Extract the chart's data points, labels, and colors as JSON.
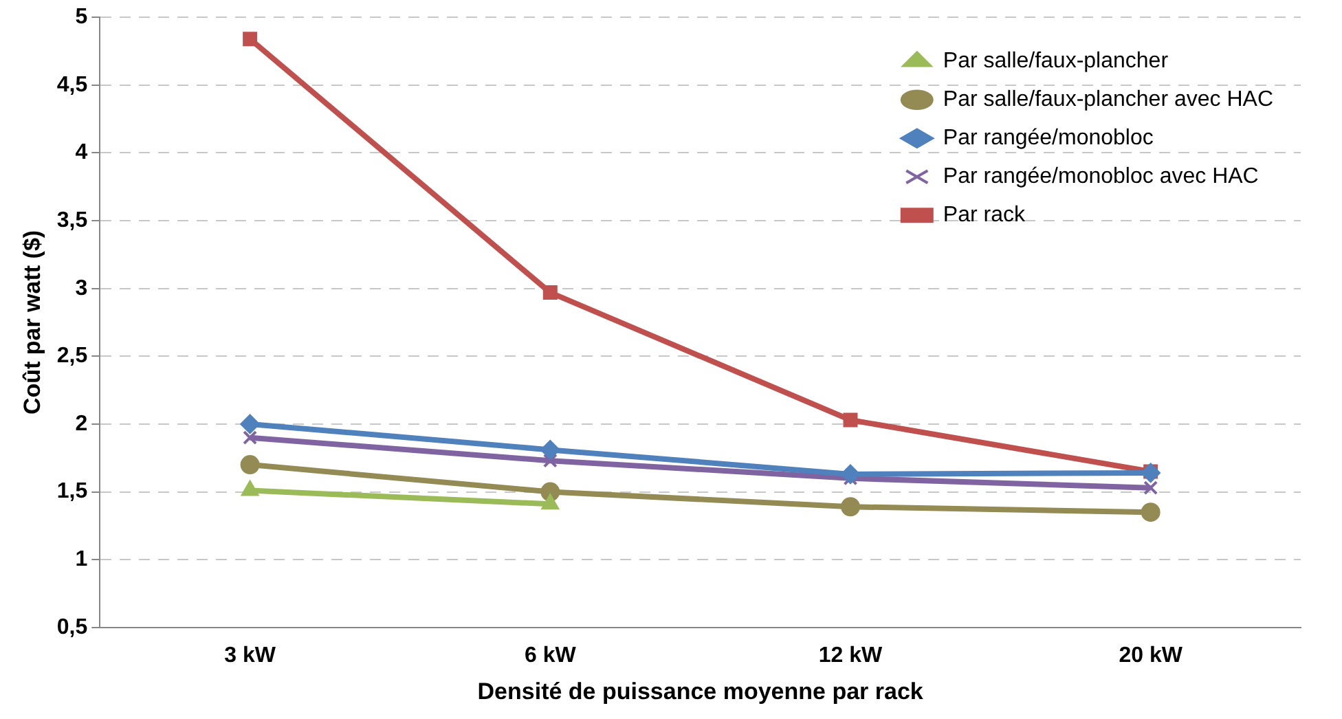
{
  "chart_data": {
    "type": "line",
    "xlabel": "Densité de puissance moyenne par rack",
    "ylabel": "Coût par watt ($)",
    "categories": [
      "3 kW",
      "6 kW",
      "12 kW",
      "20 kW"
    ],
    "series": [
      {
        "name": "Par salle/faux-plancher",
        "color": "#9bbb59",
        "marker": "triangle",
        "values": [
          1.51,
          1.41,
          null,
          null
        ]
      },
      {
        "name": "Par salle/faux-plancher avec HAC",
        "color": "#948a54",
        "marker": "circle",
        "values": [
          1.7,
          1.5,
          1.39,
          1.35
        ]
      },
      {
        "name": "Par rangée/monobloc",
        "color": "#4f81bd",
        "marker": "diamond",
        "values": [
          2.0,
          1.81,
          1.63,
          1.64
        ]
      },
      {
        "name": "Par rangée/monobloc avec HAC",
        "color": "#8064a2",
        "marker": "cross",
        "values": [
          1.9,
          1.73,
          1.6,
          1.53
        ]
      },
      {
        "name": "Par rack",
        "color": "#c0504d",
        "marker": "square",
        "values": [
          4.84,
          2.97,
          2.03,
          1.65
        ]
      }
    ],
    "ylim": [
      0.5,
      5
    ],
    "yticks": [
      {
        "value": 0.5,
        "label": "0,5"
      },
      1,
      {
        "value": 1.5,
        "label": "1,5"
      },
      2,
      {
        "value": 2.5,
        "label": "2,5"
      },
      3,
      {
        "value": 3.5,
        "label": "3,5"
      },
      4,
      {
        "value": 4.5,
        "label": "4,5"
      },
      5
    ],
    "grid": "y",
    "legend": "top right",
    "line_style": "solid"
  }
}
